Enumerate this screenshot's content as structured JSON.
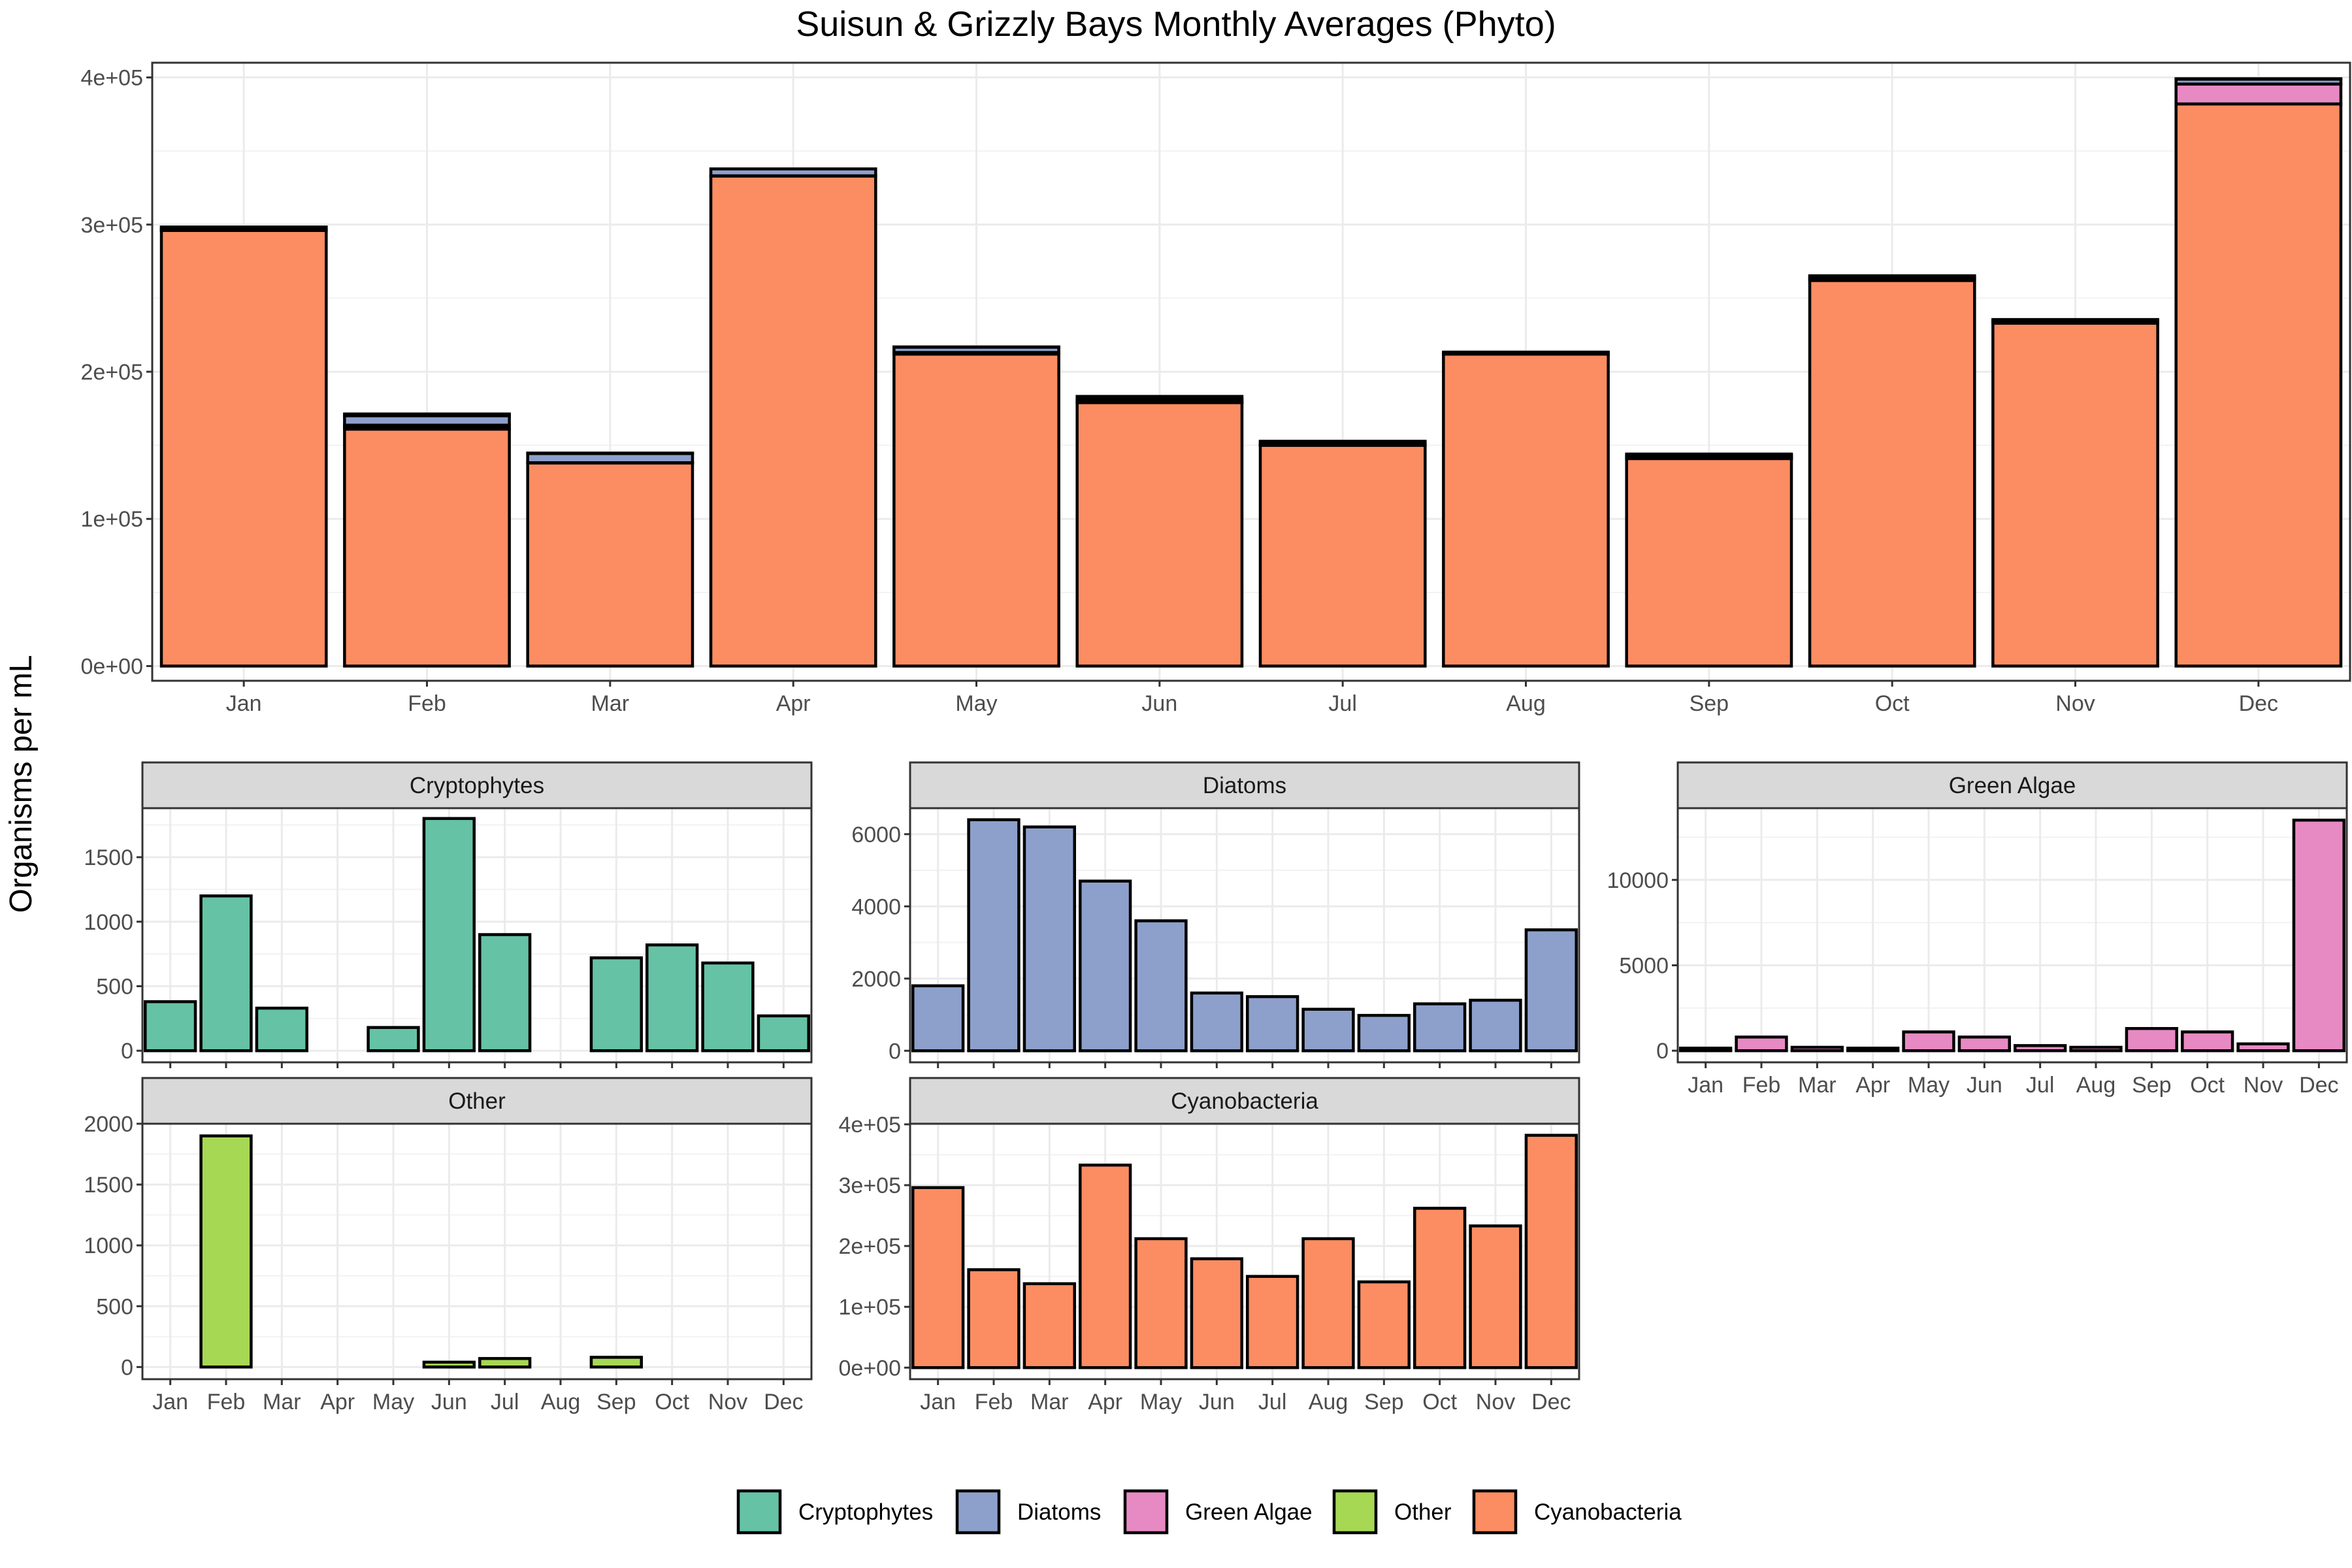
{
  "figure": {
    "ylabel": "Organisms per mL",
    "months": [
      "Jan",
      "Feb",
      "Mar",
      "Apr",
      "May",
      "Jun",
      "Jul",
      "Aug",
      "Sep",
      "Oct",
      "Nov",
      "Dec"
    ],
    "colors": {
      "Cryptophytes": "#66C2A5",
      "Diatoms": "#8DA0CB",
      "Green Algae": "#E78AC3",
      "Other": "#A6D854",
      "Cyanobacteria": "#FC8D62"
    },
    "legend": [
      "Cryptophytes",
      "Diatoms",
      "Green Algae",
      "Other",
      "Cyanobacteria"
    ]
  },
  "chart_data": [
    {
      "id": "total",
      "type": "bar",
      "stacked": true,
      "title": "Suisun & Grizzly Bays Monthly Averages (Phyto)",
      "ylabel": "Organisms per mL",
      "categories": [
        "Jan",
        "Feb",
        "Mar",
        "Apr",
        "May",
        "Jun",
        "Jul",
        "Aug",
        "Sep",
        "Oct",
        "Nov",
        "Dec"
      ],
      "ylim": [
        -10000,
        410000
      ],
      "yticks": [
        0,
        100000,
        200000,
        300000,
        400000
      ],
      "ytick_labels": [
        "0e+00",
        "1e+05",
        "2e+05",
        "3e+05",
        "4e+05"
      ],
      "series": [
        {
          "name": "Cyanobacteria",
          "values": [
            296000,
            161000,
            138000,
            333000,
            212000,
            179000,
            150000,
            212000,
            141000,
            262000,
            233000,
            382000
          ]
        },
        {
          "name": "Other",
          "values": [
            0,
            1900,
            0,
            0,
            0,
            40,
            70,
            0,
            80,
            0,
            0,
            0
          ]
        },
        {
          "name": "Green Algae",
          "values": [
            150,
            800,
            200,
            150,
            1100,
            800,
            300,
            200,
            1300,
            1100,
            400,
            13500
          ]
        },
        {
          "name": "Diatoms",
          "values": [
            1800,
            6400,
            6200,
            4700,
            3600,
            1600,
            1500,
            1150,
            980,
            1300,
            1400,
            3350
          ]
        },
        {
          "name": "Cryptophytes",
          "values": [
            380,
            1200,
            330,
            0,
            180,
            1800,
            900,
            0,
            720,
            820,
            680,
            270
          ]
        }
      ],
      "grid": true
    },
    {
      "id": "cryptophytes",
      "type": "bar",
      "facet": "Cryptophytes",
      "categories": [
        "Jan",
        "Feb",
        "Mar",
        "Apr",
        "May",
        "Jun",
        "Jul",
        "Aug",
        "Sep",
        "Oct",
        "Nov",
        "Dec"
      ],
      "values": [
        380,
        1200,
        330,
        0,
        180,
        1800,
        900,
        0,
        720,
        820,
        680,
        270
      ],
      "ylim": [
        -90,
        1880
      ],
      "yticks": [
        0,
        500,
        1000,
        1500
      ],
      "ytick_labels": [
        "0",
        "500",
        "1000",
        "1500"
      ]
    },
    {
      "id": "diatoms",
      "type": "bar",
      "facet": "Diatoms",
      "categories": [
        "Jan",
        "Feb",
        "Mar",
        "Apr",
        "May",
        "Jun",
        "Jul",
        "Aug",
        "Sep",
        "Oct",
        "Nov",
        "Dec"
      ],
      "values": [
        1800,
        6400,
        6200,
        4700,
        3600,
        1600,
        1500,
        1150,
        980,
        1300,
        1400,
        3350
      ],
      "ylim": [
        -320,
        6720
      ],
      "yticks": [
        0,
        2000,
        4000,
        6000
      ],
      "ytick_labels": [
        "0",
        "2000",
        "4000",
        "6000"
      ]
    },
    {
      "id": "green",
      "type": "bar",
      "facet": "Green Algae",
      "categories": [
        "Jan",
        "Feb",
        "Mar",
        "Apr",
        "May",
        "Jun",
        "Jul",
        "Aug",
        "Sep",
        "Oct",
        "Nov",
        "Dec"
      ],
      "values": [
        150,
        800,
        200,
        150,
        1100,
        800,
        300,
        200,
        1300,
        1100,
        400,
        13500
      ],
      "ylim": [
        -680,
        14200
      ],
      "yticks": [
        0,
        5000,
        10000
      ],
      "ytick_labels": [
        "0",
        "5000",
        "10000"
      ]
    },
    {
      "id": "other",
      "type": "bar",
      "facet": "Other",
      "categories": [
        "Jan",
        "Feb",
        "Mar",
        "Apr",
        "May",
        "Jun",
        "Jul",
        "Aug",
        "Sep",
        "Oct",
        "Nov",
        "Dec"
      ],
      "values": [
        0,
        1900,
        0,
        0,
        0,
        40,
        70,
        0,
        80,
        0,
        0,
        0
      ],
      "ylim": [
        -100,
        2000
      ],
      "yticks": [
        0,
        500,
        1000,
        1500,
        2000
      ],
      "ytick_labels": [
        "0",
        "500",
        "1000",
        "1500",
        "2000"
      ]
    },
    {
      "id": "cyano",
      "type": "bar",
      "facet": "Cyanobacteria",
      "categories": [
        "Jan",
        "Feb",
        "Mar",
        "Apr",
        "May",
        "Jun",
        "Jul",
        "Aug",
        "Sep",
        "Oct",
        "Nov",
        "Dec"
      ],
      "values": [
        296000,
        161000,
        138000,
        333000,
        212000,
        179000,
        150000,
        212000,
        141000,
        262000,
        233000,
        382000
      ],
      "ylim": [
        -19000,
        401000
      ],
      "yticks": [
        0,
        100000,
        200000,
        300000,
        400000
      ],
      "ytick_labels": [
        "0e+00",
        "1e+05",
        "2e+05",
        "3e+05",
        "4e+05"
      ]
    }
  ]
}
